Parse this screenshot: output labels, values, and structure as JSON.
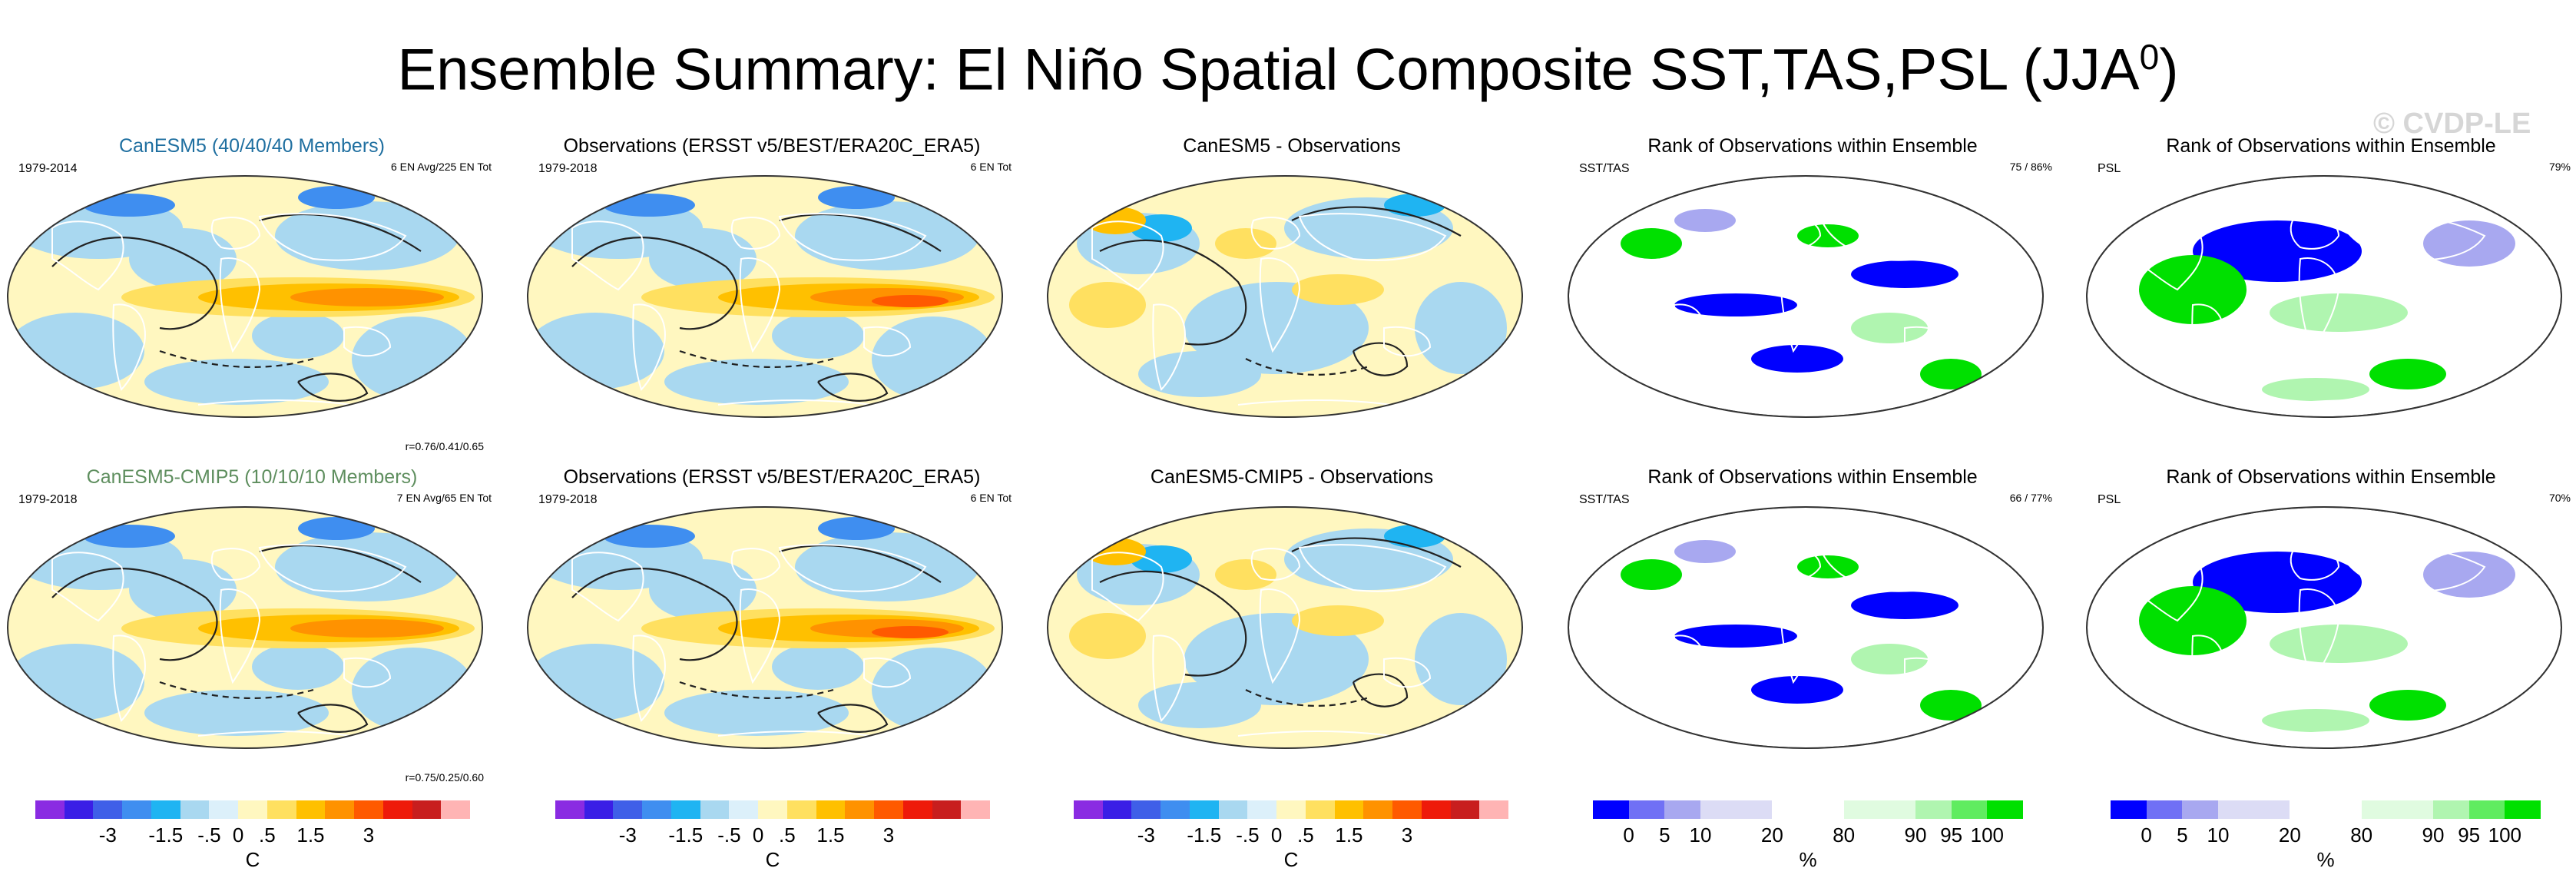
{
  "figure": {
    "title": "Ensemble Summary: El Niño Spatial Composite SST,TAS,PSL (JJA",
    "title_sup": "0",
    "title_close": ")",
    "watermark": "© CVDP-LE"
  },
  "panels": [
    {
      "title": "CanESM5 (40/40/40 Members)",
      "title_color": "#1f6fa0",
      "label": "1979-2014",
      "right": "6 EN Avg/225 EN Tot",
      "bottom_right": "r=0.76/0.41/0.65",
      "type": "anomaly"
    },
    {
      "title": "Observations (ERSST v5/BEST/ERA20C_ERA5)",
      "title_color": "#000000",
      "label": "1979-2018",
      "right": "6 EN Tot",
      "bottom_right": "",
      "type": "anomaly"
    },
    {
      "title": "CanESM5 - Observations",
      "title_color": "#000000",
      "label": "",
      "right": "",
      "bottom_right": "",
      "type": "diff"
    },
    {
      "title": "Rank of Observations within Ensemble",
      "title_color": "#000000",
      "label": "SST/TAS",
      "right": "75 /  86%",
      "bottom_right": "",
      "type": "rank"
    },
    {
      "title": "Rank of Observations within Ensemble",
      "title_color": "#000000",
      "label": "PSL",
      "right": "79%",
      "bottom_right": "",
      "type": "rankpsl"
    },
    {
      "title": "CanESM5-CMIP5 (10/10/10 Members)",
      "title_color": "#5e8e5e",
      "label": "1979-2018",
      "right": "7 EN Avg/65 EN Tot",
      "bottom_right": "r=0.75/0.25/0.60",
      "type": "anomaly"
    },
    {
      "title": "Observations (ERSST v5/BEST/ERA20C_ERA5)",
      "title_color": "#000000",
      "label": "1979-2018",
      "right": "6 EN Tot",
      "bottom_right": "",
      "type": "anomaly"
    },
    {
      "title": "CanESM5-CMIP5 - Observations",
      "title_color": "#000000",
      "label": "",
      "right": "",
      "bottom_right": "",
      "type": "diff"
    },
    {
      "title": "Rank of Observations within Ensemble",
      "title_color": "#000000",
      "label": "SST/TAS",
      "right": "66 /  77%",
      "bottom_right": "",
      "type": "rank"
    },
    {
      "title": "Rank of Observations within Ensemble",
      "title_color": "#000000",
      "label": "PSL",
      "right": "70%",
      "bottom_right": "",
      "type": "rankpsl"
    }
  ],
  "colorbars": {
    "temperature": {
      "colors": [
        "#8a2be2",
        "#3a1ee6",
        "#3f5fe8",
        "#3f8ef0",
        "#1fb4f2",
        "#a9d8f0",
        "#dcf0fa",
        "#fff7c0",
        "#ffe060",
        "#ffc000",
        "#ff9200",
        "#ff5a00",
        "#ee1a0a",
        "#c81e1e",
        "#ffb4b4"
      ],
      "ticks": [
        "-3",
        "-1.5",
        "-.5",
        "0",
        ".5",
        "1.5",
        "3"
      ],
      "unit": "C"
    },
    "rank": {
      "colors": [
        "#0000ff",
        "#7070f5",
        "#a8a8f0",
        "#dcdcf5",
        "#dcdcf5",
        "#ffffff",
        "#ffffff",
        "#e0fbe0",
        "#e0fbe0",
        "#b0f5b0",
        "#60ec60",
        "#00e000"
      ],
      "ticks": [
        "0",
        "5",
        "10",
        "20",
        "80",
        "90",
        "95",
        "100"
      ],
      "unit": "%"
    }
  },
  "chart_data": {
    "type": "heatmap",
    "title": "Ensemble Summary: El Niño Spatial Composite SST,TAS,PSL (JJA0)",
    "variables": [
      "SST",
      "TAS",
      "PSL"
    ],
    "season": "JJA0",
    "rows": [
      {
        "model": "CanESM5 (40/40/40 Members)",
        "period": "1979-2014",
        "events": "6 EN Avg/225 EN Tot",
        "pattern_correlation": [
          0.76,
          0.41,
          0.65
        ],
        "rank_sst_tas": [
          75,
          86
        ],
        "rank_psl": 79
      },
      {
        "model": "CanESM5-CMIP5 (10/10/10 Members)",
        "period": "1979-2018",
        "events": "7 EN Avg/65 EN Tot",
        "pattern_correlation": [
          0.75,
          0.25,
          0.6
        ],
        "rank_sst_tas": [
          66,
          77
        ],
        "rank_psl": 70
      }
    ],
    "observations": {
      "name": "ERSST v5/BEST/ERA20C_ERA5",
      "period": "1979-2018",
      "events": "6 EN Tot"
    },
    "temperature_levels": [
      -3,
      -2.5,
      -2,
      -1.5,
      -1,
      -0.5,
      -0.25,
      0,
      0.25,
      0.5,
      1,
      1.5,
      2,
      2.5,
      3
    ],
    "temperature_unit": "C",
    "rank_levels": [
      0,
      5,
      10,
      20,
      80,
      90,
      95,
      100
    ],
    "rank_unit": "%"
  }
}
